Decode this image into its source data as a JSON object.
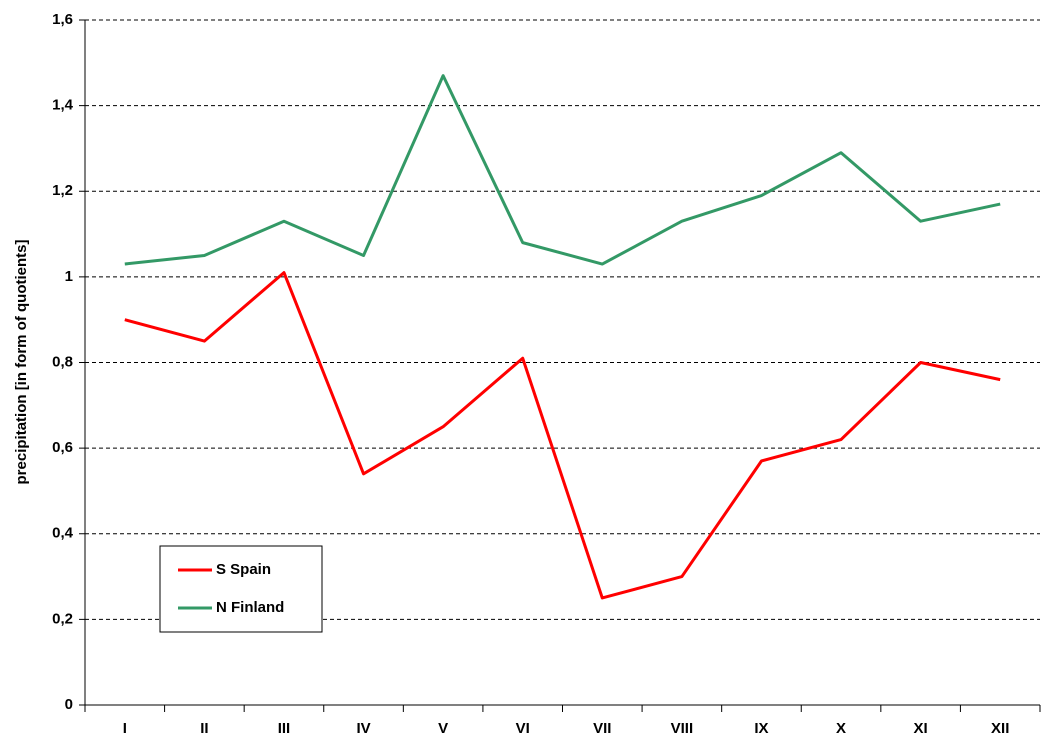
{
  "chart_data": {
    "type": "line",
    "y_label": "precipitation [in form of quotients]",
    "categories": [
      "I",
      "II",
      "III",
      "IV",
      "V",
      "VI",
      "VII",
      "VIII",
      "IX",
      "X",
      "XI",
      "XII"
    ],
    "series": [
      {
        "name": "S Spain",
        "color": "#ff0000",
        "values": [
          0.9,
          0.85,
          1.01,
          0.54,
          0.65,
          0.81,
          0.25,
          0.3,
          0.57,
          0.62,
          0.8,
          0.76
        ]
      },
      {
        "name": "N Finland",
        "color": "#339966",
        "values": [
          1.03,
          1.05,
          1.13,
          1.05,
          1.47,
          1.08,
          1.03,
          1.13,
          1.19,
          1.29,
          1.13,
          1.17
        ]
      }
    ],
    "ylim": [
      0,
      1.6
    ],
    "yticks": [
      0,
      {
        "value": 0.2,
        "label": "0,2"
      },
      {
        "value": 0.4,
        "label": "0,4"
      },
      {
        "value": 0.6,
        "label": "0,6"
      },
      {
        "value": 0.8,
        "label": "0,8"
      },
      1,
      {
        "value": 1.2,
        "label": "1,2"
      },
      {
        "value": 1.4,
        "label": "1,4"
      },
      {
        "value": 1.6,
        "label": "1,6"
      }
    ],
    "grid": true,
    "legend": "lower left"
  }
}
